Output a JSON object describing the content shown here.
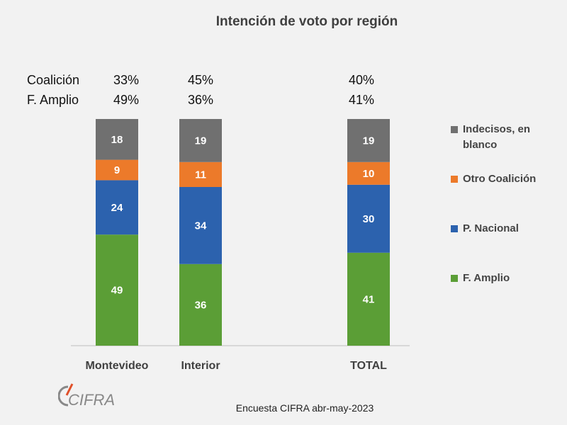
{
  "chart_data": {
    "type": "bar",
    "stacked": true,
    "title": "Intención de voto por región",
    "categories": [
      "Montevideo",
      "Interior",
      "TOTAL"
    ],
    "series": [
      {
        "name": "F. Amplio",
        "values": [
          49,
          36,
          41
        ],
        "color": "#5b9e36"
      },
      {
        "name": "P. Nacional",
        "values": [
          24,
          34,
          30
        ],
        "color": "#2c62ae"
      },
      {
        "name": "Otro Coalición",
        "values": [
          9,
          11,
          10
        ],
        "color": "#ec7a2a"
      },
      {
        "name": "Indecisos, en blanco",
        "values": [
          18,
          19,
          19
        ],
        "color": "#707070"
      }
    ],
    "ylim": [
      0,
      100
    ],
    "grid": false,
    "legend_position": "right",
    "summary": {
      "rows": [
        {
          "label": "Coalición",
          "values": [
            "33%",
            "45%",
            "40%"
          ]
        },
        {
          "label": "F. Amplio",
          "values": [
            "49%",
            "36%",
            "41%"
          ]
        }
      ]
    }
  },
  "legend": {
    "items": [
      {
        "label": "Indecisos, en blanco",
        "color": "#707070"
      },
      {
        "label": "Otro Coalición",
        "color": "#ec7a2a"
      },
      {
        "label": "P. Nacional",
        "color": "#2c62ae"
      },
      {
        "label": "F. Amplio",
        "color": "#5b9e36"
      }
    ]
  },
  "footer": {
    "source": "Encuesta CIFRA abr-may-2023",
    "logo_text": "CIFRA"
  }
}
